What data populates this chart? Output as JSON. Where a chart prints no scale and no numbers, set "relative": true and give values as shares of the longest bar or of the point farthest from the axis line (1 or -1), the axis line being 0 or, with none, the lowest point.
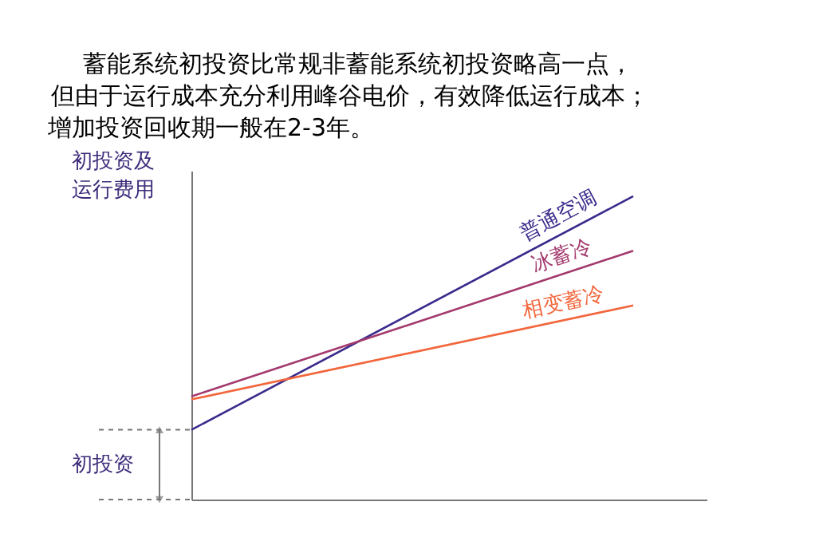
{
  "chart_data": {
    "type": "line",
    "relative": true,
    "title": [
      "蓄能系统初投资比常规非蓄能系统初投资略高一点，",
      "但由于运行成本充分利用峰谷电价，有效降低运行成本；",
      "增加投资回收期一般在2-3年。"
    ],
    "ylabel": "初投资及运行费用",
    "categories": [
      null,
      null
    ],
    "series": [
      {
        "name": "普通空调",
        "color": "#3b2a8c",
        "values": [
          0.23,
          1
        ]
      },
      {
        "name": "冰蓄冷",
        "color": "#a33a6e",
        "values": [
          0.34,
          0.82
        ]
      },
      {
        "name": "相变蓄冷",
        "color": "#f2663c",
        "values": [
          0.33,
          0.64
        ]
      }
    ],
    "annotations": [
      "初投资"
    ],
    "grid": false,
    "legend": false
  }
}
